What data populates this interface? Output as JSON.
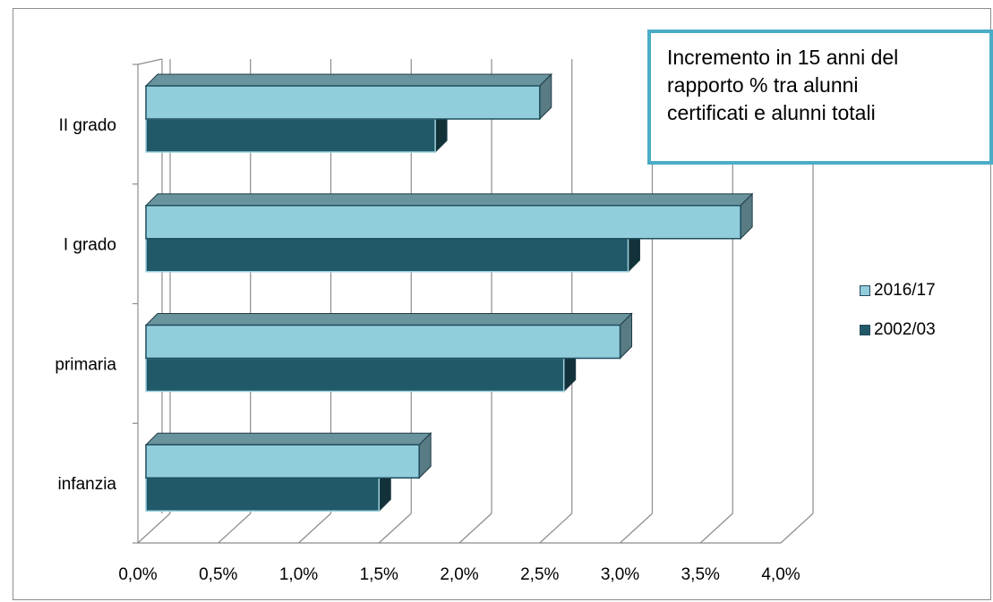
{
  "chart_data": {
    "type": "bar",
    "orientation": "horizontal",
    "three_d": true,
    "categories": [
      "infanzia",
      "primaria",
      "I grado",
      "II grado"
    ],
    "series": [
      {
        "name": "2016/17",
        "values": [
          1.7,
          2.95,
          3.7,
          2.45
        ],
        "color": "#92cddc"
      },
      {
        "name": "2002/03",
        "values": [
          1.45,
          2.6,
          3.0,
          1.8
        ],
        "color": "#215968"
      }
    ],
    "xlim": [
      0,
      4.0
    ],
    "x_ticks": [
      "0,0%",
      "0,5%",
      "1,0%",
      "1,5%",
      "2,0%",
      "2,5%",
      "3,0%",
      "3,5%",
      "4,0%"
    ],
    "grid": true,
    "legend_position": "right",
    "annotation": "Incremento in 15 anni del\nrapporto % tra alunni\ncertificati e alunni totali"
  }
}
